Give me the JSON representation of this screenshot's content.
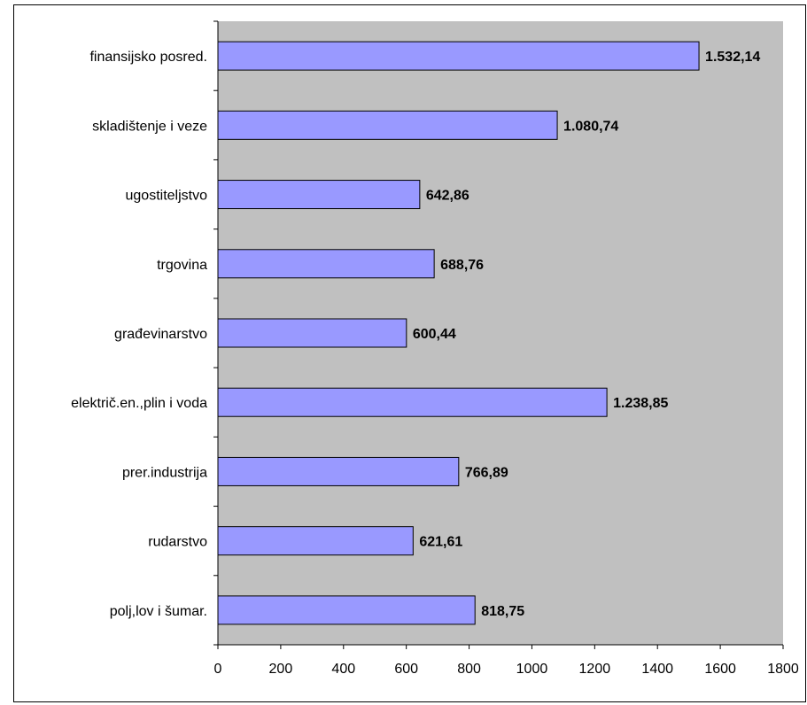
{
  "chart_data": {
    "type": "bar",
    "orientation": "horizontal",
    "categories": [
      "finansijsko posred.",
      "skladištenje i veze",
      "ugostiteljstvo",
      "trgovina",
      "građevinarstvo",
      "električ.en.,plin i voda",
      "prer.industrija",
      "rudarstvo",
      "polj,lov i šumar."
    ],
    "values": [
      1532.14,
      1080.74,
      642.86,
      688.76,
      600.44,
      1238.85,
      766.89,
      621.61,
      818.75
    ],
    "value_labels": [
      "1.532,14",
      "1.080,74",
      "642,86",
      "688,76",
      "600,44",
      "1.238,85",
      "766,89",
      "621,61",
      "818,75"
    ],
    "xlim": [
      0,
      1800
    ],
    "xticks": [
      0,
      200,
      400,
      600,
      800,
      1000,
      1200,
      1400,
      1600,
      1800
    ],
    "grid": false,
    "legend": "none",
    "title": "",
    "xlabel": "",
    "ylabel": ""
  },
  "colors": {
    "bar_fill": "#9999ff",
    "bar_stroke": "#000000",
    "plot_background": "#c0c0c0",
    "axis": "#000000"
  }
}
